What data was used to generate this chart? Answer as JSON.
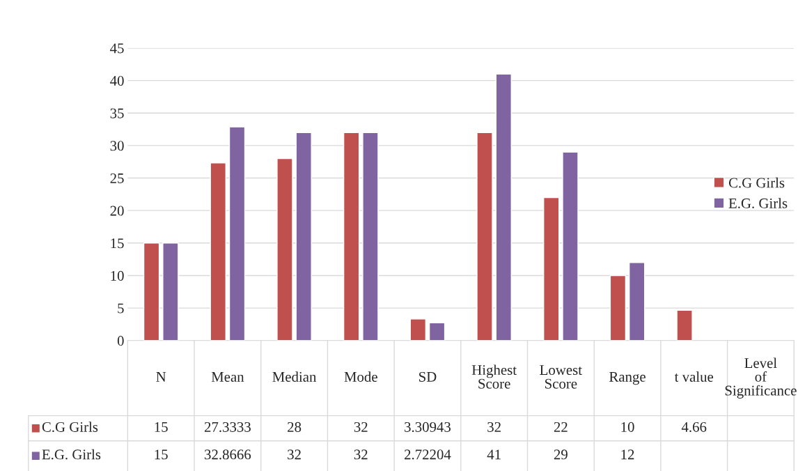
{
  "chart_data": {
    "type": "bar",
    "categories": [
      "N",
      "Mean",
      "Median",
      "Mode",
      "SD",
      "Highest Score",
      "Lowest Score",
      "Range",
      "t value",
      "Level of Significance"
    ],
    "series": [
      {
        "name": "C.G Girls",
        "color": "#c0504d",
        "values": [
          15,
          27.3333,
          28,
          32,
          3.30943,
          32,
          22,
          10,
          4.66,
          null
        ]
      },
      {
        "name": "E.G. Girls",
        "color": "#8064a2",
        "values": [
          15,
          32.8666,
          32,
          32,
          2.72204,
          41,
          29,
          12,
          null,
          null
        ]
      }
    ],
    "ylim": [
      0,
      45
    ],
    "yticks": [
      0,
      5,
      10,
      15,
      20,
      25,
      30,
      35,
      40,
      45
    ],
    "grid": "y",
    "legend": "right",
    "data_labels": true
  }
}
